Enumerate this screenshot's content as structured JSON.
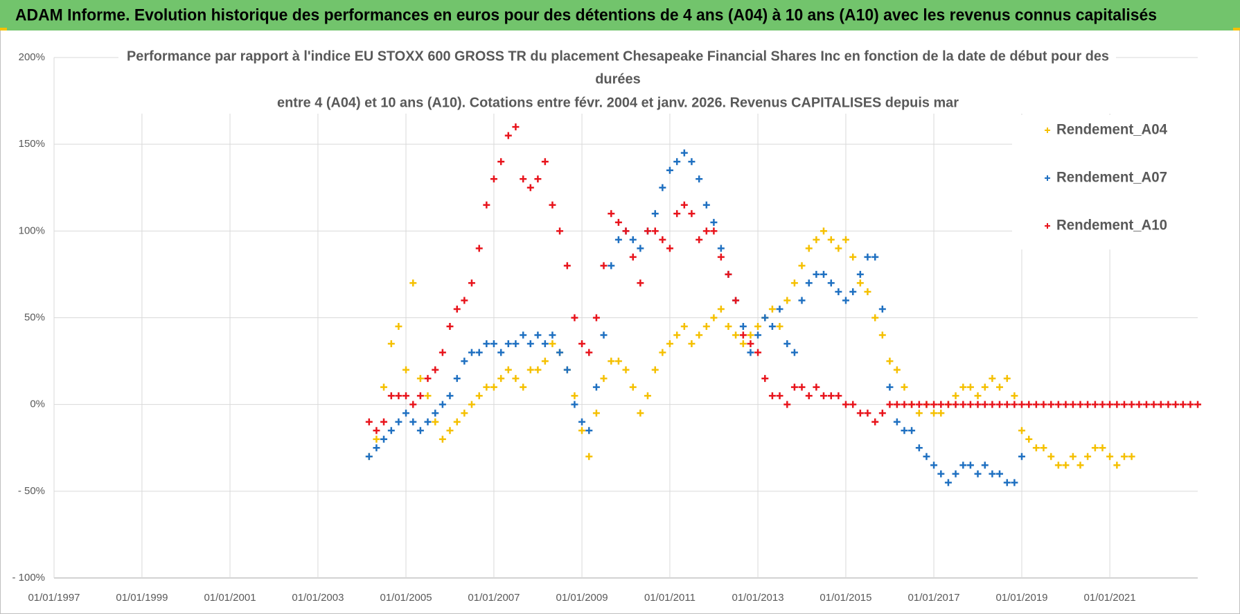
{
  "banner": "ADAM Informe. Evolution historique des performances en euros pour des détentions de 4 ans (A04) à 10 ans (A10) avec les revenus connus capitalisés",
  "chart_data": {
    "type": "scatter",
    "title": [
      "Performance par rapport à l'indice EU STOXX 600 GROSS TR  du placement Chesapeake Financial Shares Inc en fonction de la date de début pour des",
      "durées",
      "entre 4 (A04) et 10 ans (A10). Cotations entre févr. 2004 et janv. 2026. Revenus CAPITALISES depuis mar"
    ],
    "x": [
      "01/03/2004",
      "01/05/2004",
      "01/07/2004",
      "01/09/2004",
      "01/11/2004",
      "01/01/2005",
      "01/03/2005",
      "01/05/2005",
      "01/07/2005",
      "01/09/2005",
      "01/11/2005",
      "01/01/2006",
      "01/03/2006",
      "01/05/2006",
      "01/07/2006",
      "01/09/2006",
      "01/11/2006",
      "01/01/2007",
      "01/03/2007",
      "01/05/2007",
      "01/07/2007",
      "01/09/2007",
      "01/11/2007",
      "01/01/2008",
      "01/03/2008",
      "01/05/2008",
      "01/07/2008",
      "01/09/2008",
      "01/11/2008",
      "01/01/2009",
      "01/03/2009",
      "01/05/2009",
      "01/07/2009",
      "01/09/2009",
      "01/11/2009",
      "01/01/2010",
      "01/03/2010",
      "01/05/2010",
      "01/07/2010",
      "01/09/2010",
      "01/11/2010",
      "01/01/2011",
      "01/03/2011",
      "01/05/2011",
      "01/07/2011",
      "01/09/2011",
      "01/11/2011",
      "01/01/2012",
      "01/03/2012",
      "01/05/2012",
      "01/07/2012",
      "01/09/2012",
      "01/11/2012",
      "01/01/2013",
      "01/03/2013",
      "01/05/2013",
      "01/07/2013",
      "01/09/2013",
      "01/11/2013",
      "01/01/2014",
      "01/03/2014",
      "01/05/2014",
      "01/07/2014",
      "01/09/2014",
      "01/11/2014",
      "01/01/2015",
      "01/03/2015",
      "01/05/2015",
      "01/07/2015",
      "01/09/2015",
      "01/11/2015",
      "01/01/2016",
      "01/03/2016",
      "01/05/2016",
      "01/07/2016",
      "01/09/2016",
      "01/11/2016",
      "01/01/2017",
      "01/03/2017",
      "01/05/2017",
      "01/07/2017",
      "01/09/2017",
      "01/11/2017",
      "01/01/2018",
      "01/03/2018",
      "01/05/2018",
      "01/07/2018",
      "01/09/2018",
      "01/11/2018",
      "01/01/2019",
      "01/03/2019",
      "01/05/2019",
      "01/07/2019",
      "01/09/2019",
      "01/11/2019",
      "01/01/2020",
      "01/03/2020",
      "01/05/2020",
      "01/07/2020",
      "01/09/2020",
      "01/11/2020",
      "01/01/2021",
      "01/03/2021",
      "01/05/2021",
      "01/07/2021",
      "01/09/2021",
      "01/11/2021",
      "01/01/2022",
      "01/03/2022",
      "01/05/2022",
      "01/07/2022",
      "01/09/2022",
      "01/11/2022",
      "01/01/2023"
    ],
    "series": [
      {
        "name": "Rendement_A04",
        "color": "#f5c000",
        "values": [
          -30,
          -20,
          10,
          35,
          45,
          20,
          70,
          15,
          5,
          -10,
          -20,
          -15,
          -10,
          -5,
          0,
          5,
          10,
          10,
          15,
          20,
          15,
          10,
          20,
          20,
          25,
          35,
          30,
          20,
          5,
          -15,
          -30,
          -5,
          15,
          25,
          25,
          20,
          10,
          -5,
          5,
          20,
          30,
          35,
          40,
          45,
          35,
          40,
          45,
          50,
          55,
          45,
          40,
          35,
          40,
          45,
          50,
          55,
          45,
          60,
          70,
          80,
          90,
          95,
          100,
          95,
          90,
          95,
          85,
          70,
          65,
          50,
          40,
          25,
          20,
          10,
          0,
          -5,
          0,
          -5,
          -5,
          0,
          5,
          10,
          10,
          5,
          10,
          15,
          10,
          15,
          5,
          -15,
          -20,
          -25,
          -25,
          -30,
          -35,
          -35,
          -30,
          -35,
          -30,
          -25,
          -25,
          -30,
          -35,
          -30,
          -30,
          null,
          null,
          null,
          null,
          null,
          null,
          null,
          null,
          null
        ]
      },
      {
        "name": "Rendement_A07",
        "color": "#1f70c1",
        "values": [
          -30,
          -25,
          -20,
          -15,
          -10,
          -5,
          -10,
          -15,
          -10,
          -5,
          0,
          5,
          15,
          25,
          30,
          30,
          35,
          35,
          30,
          35,
          35,
          40,
          35,
          40,
          35,
          40,
          30,
          20,
          0,
          -10,
          -15,
          10,
          40,
          80,
          95,
          100,
          95,
          90,
          100,
          110,
          125,
          135,
          140,
          145,
          140,
          130,
          115,
          105,
          90,
          75,
          60,
          45,
          30,
          40,
          50,
          45,
          55,
          35,
          30,
          60,
          70,
          75,
          75,
          70,
          65,
          60,
          65,
          75,
          85,
          85,
          55,
          10,
          -10,
          -15,
          -15,
          -25,
          -30,
          -35,
          -40,
          -45,
          -40,
          -35,
          -35,
          -40,
          -35,
          -40,
          -40,
          -45,
          -45,
          -30,
          null,
          null,
          null,
          null,
          null,
          null,
          null,
          null,
          null,
          null,
          null,
          null,
          null,
          null,
          null,
          null,
          null,
          null,
          null,
          null,
          null,
          null,
          null,
          null
        ]
      },
      {
        "name": "Rendement_A10",
        "color": "#e8141c",
        "values": [
          -10,
          -15,
          -10,
          5,
          5,
          5,
          0,
          5,
          15,
          20,
          30,
          45,
          55,
          60,
          70,
          90,
          115,
          130,
          140,
          155,
          160,
          130,
          125,
          130,
          140,
          115,
          100,
          80,
          50,
          35,
          30,
          50,
          80,
          110,
          105,
          100,
          85,
          70,
          100,
          100,
          95,
          90,
          110,
          115,
          110,
          95,
          100,
          100,
          85,
          75,
          60,
          40,
          35,
          30,
          15,
          5,
          5,
          0,
          10,
          10,
          5,
          10,
          5,
          5,
          5,
          0,
          0,
          -5,
          -5,
          -10,
          -5,
          0,
          0,
          0,
          0,
          0,
          0,
          0,
          0,
          0,
          0,
          0,
          0,
          0,
          0,
          0,
          0,
          0,
          0,
          0,
          0,
          0,
          0,
          0,
          0,
          0,
          0,
          0,
          0,
          0,
          0,
          0,
          0,
          0,
          0,
          0,
          0,
          0,
          0,
          0,
          0,
          0,
          0,
          0
        ]
      }
    ],
    "xlim": [
      "01/01/1997",
      "01/01/2023"
    ],
    "xticks": [
      "01/01/1997",
      "01/01/1999",
      "01/01/2001",
      "01/01/2003",
      "01/01/2005",
      "01/01/2007",
      "01/01/2009",
      "01/01/2011",
      "01/01/2013",
      "01/01/2015",
      "01/01/2017",
      "01/01/2019",
      "01/01/2021"
    ],
    "ylim": [
      -100,
      200
    ],
    "yticks": [
      {
        "value": -100,
        "label": "- 100%"
      },
      {
        "value": -50,
        "label": "- 50%"
      },
      {
        "value": 0,
        "label": "0%"
      },
      {
        "value": 50,
        "label": "50%"
      },
      {
        "value": 100,
        "label": "100%"
      },
      {
        "value": 150,
        "label": "150%"
      },
      {
        "value": 200,
        "label": "200%"
      }
    ],
    "grid": true,
    "legend": "right"
  }
}
